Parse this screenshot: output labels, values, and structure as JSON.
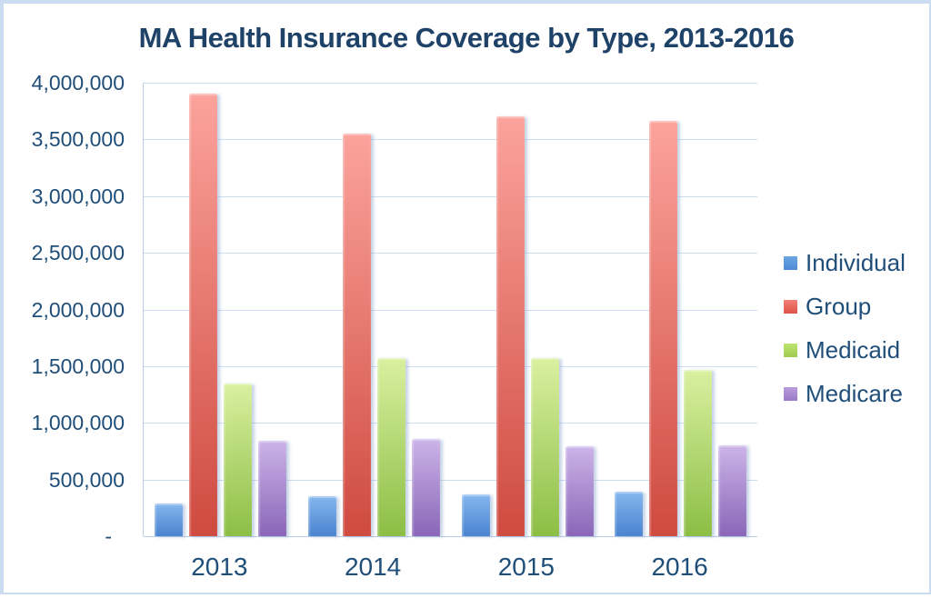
{
  "title": "MA Health Insurance Coverage by Type, 2013-2016",
  "colors": {
    "background": "#ffffff",
    "frame_border": "#cbdbf2",
    "gridline": "#cfdcf1",
    "axis_line": "#b9cde9",
    "title_text": "#1f4268",
    "label_text": "#1f4e79"
  },
  "chart_data": {
    "type": "bar",
    "title": "MA Health Insurance Coverage by Type, 2013-2016",
    "categories": [
      "2013",
      "2014",
      "2015",
      "2016"
    ],
    "series": [
      {
        "name": "Individual",
        "values": [
          290000,
          350000,
          370000,
          390000
        ],
        "color_top": "#85b7ee",
        "color_bottom": "#4a83cf",
        "legend_top": "#6ca6e4",
        "legend_bottom": "#4e89d4"
      },
      {
        "name": "Group",
        "values": [
          3900000,
          3550000,
          3700000,
          3660000
        ],
        "color_top": "#fba39c",
        "color_bottom": "#cf4a40",
        "legend_top": "#f28078",
        "legend_bottom": "#dd5147"
      },
      {
        "name": "Medicaid",
        "values": [
          1350000,
          1570000,
          1570000,
          1470000
        ],
        "color_top": "#d9f0a0",
        "color_bottom": "#8cbe45",
        "legend_top": "#bfe472",
        "legend_bottom": "#9ecb4f"
      },
      {
        "name": "Medicare",
        "values": [
          840000,
          860000,
          790000,
          800000
        ],
        "color_top": "#ccb4e8",
        "color_bottom": "#8a66b8",
        "legend_top": "#b89ddb",
        "legend_bottom": "#9a7ac8"
      }
    ],
    "y_axis": {
      "min": 0,
      "max": 4000000,
      "step": 500000,
      "tick_labels": [
        "-",
        "500,000",
        "1,000,000",
        "1,500,000",
        "2,000,000",
        "2,500,000",
        "3,000,000",
        "3,500,000",
        "4,000,000"
      ]
    },
    "xlabel": "",
    "ylabel": "",
    "grid": true,
    "legend_position": "right"
  }
}
